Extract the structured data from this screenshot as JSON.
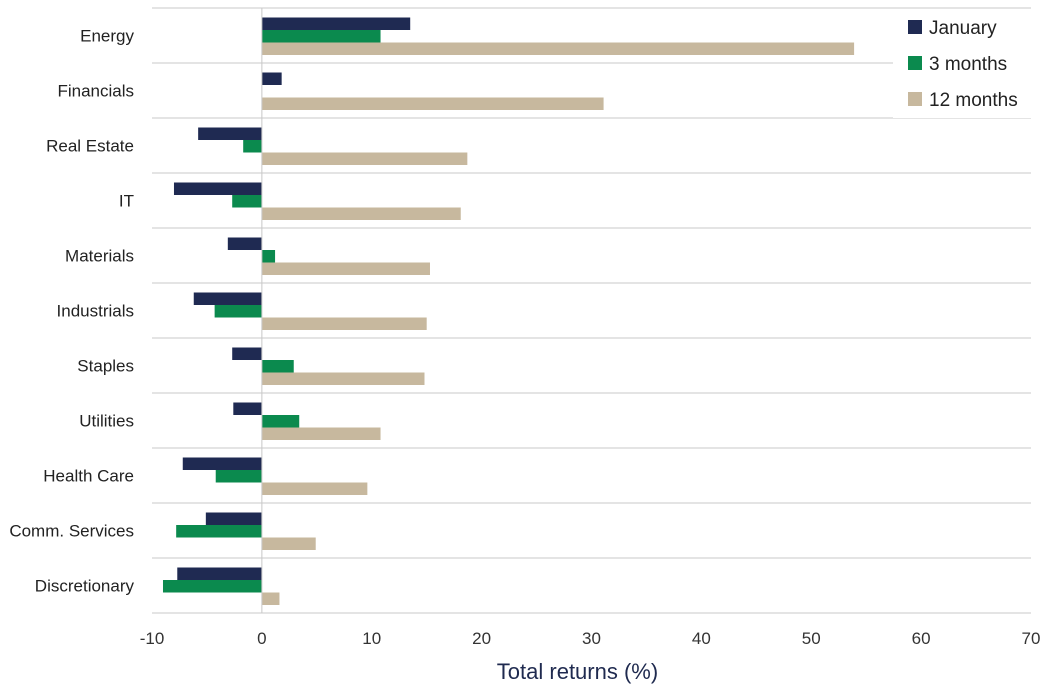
{
  "chart_data": {
    "type": "bar",
    "orientation": "horizontal",
    "categories": [
      "Energy",
      "Financials",
      "Real Estate",
      "IT",
      "Materials",
      "Industrials",
      "Staples",
      "Utilities",
      "Health Care",
      "Comm. Services",
      "Discretionary"
    ],
    "series": [
      {
        "name": "January",
        "color": "#1f2a52",
        "values": [
          13.5,
          1.8,
          -5.8,
          -8.0,
          -3.1,
          -6.2,
          -2.7,
          -2.6,
          -7.2,
          -5.1,
          -7.7
        ]
      },
      {
        "name": "3 months",
        "color": "#0b8a4e",
        "values": [
          10.8,
          0.0,
          -1.7,
          -2.7,
          1.2,
          -4.3,
          2.9,
          3.4,
          -4.2,
          -7.8,
          -9.0
        ]
      },
      {
        "name": "12 months",
        "color": "#c7b89e",
        "values": [
          53.9,
          31.1,
          18.7,
          18.1,
          15.3,
          15.0,
          14.8,
          10.8,
          9.6,
          4.9,
          1.6
        ]
      }
    ],
    "xlabel": "Total returns (%)",
    "xlim": [
      -10,
      70
    ],
    "xticks": [
      "-10",
      "0",
      "10",
      "20",
      "30",
      "40",
      "50",
      "60",
      "70"
    ],
    "grid": "horizontal separators",
    "legend": {
      "position": "top-right",
      "entries": [
        "January",
        "3 months",
        "12 months"
      ]
    }
  }
}
